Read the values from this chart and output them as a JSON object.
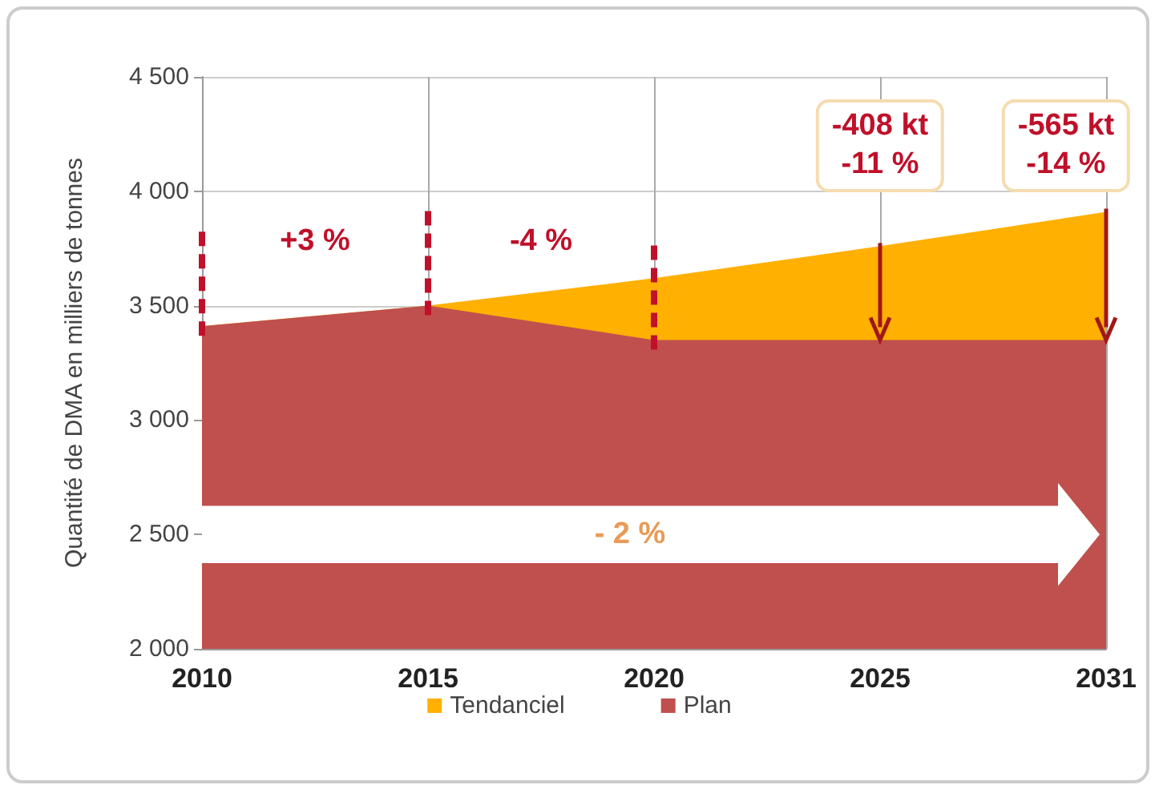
{
  "chart_data": {
    "type": "area",
    "ylabel": "Quantité de DMA en milliers de tonnes",
    "categories": [
      "2010",
      "2015",
      "2020",
      "2025",
      "2031"
    ],
    "series": [
      {
        "name": "Tendanciel",
        "color": "#ffb000",
        "values": [
          3410,
          3500,
          3620,
          3760,
          3910
        ]
      },
      {
        "name": "Plan",
        "color": "#c0504d",
        "values": [
          3410,
          3500,
          3350,
          3350,
          3350
        ]
      }
    ],
    "ylim": [
      2000,
      4500
    ],
    "yticks": [
      {
        "value": 2000,
        "label": "2 000"
      },
      {
        "value": 2500,
        "label": "2 500"
      },
      {
        "value": 3000,
        "label": "3 000"
      },
      {
        "value": 3500,
        "label": "3 500"
      },
      {
        "value": 4000,
        "label": "4 000"
      },
      {
        "value": 4500,
        "label": "4 500"
      }
    ],
    "grid": true,
    "legend": "bottom",
    "annotations": [
      "+3 %",
      "-4 %",
      {
        "text": "-408 kt\n-11 %",
        "x": "2025",
        "y": 3760
      },
      {
        "text": "-565 kt\n-14 %",
        "x": "2031",
        "y": 3910
      },
      "- 2 %"
    ]
  }
}
